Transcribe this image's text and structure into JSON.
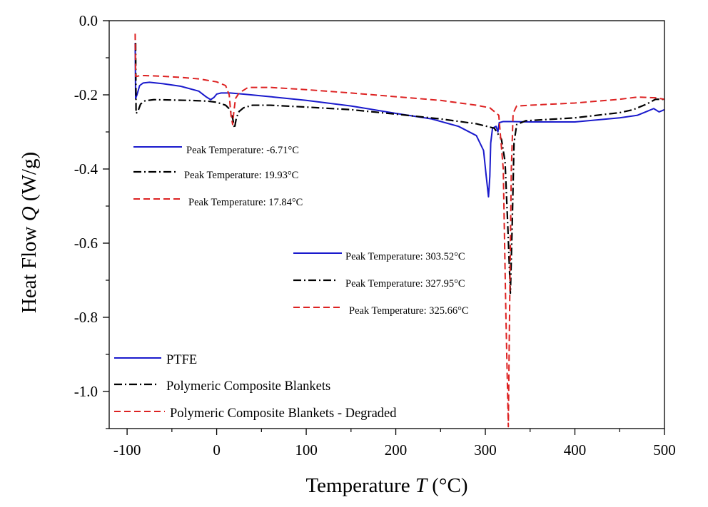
{
  "chart_data": {
    "type": "line",
    "title": "",
    "xlabel_prefix": "Temperature ",
    "xlabel_var": "T",
    "xlabel_unit": " (°C)",
    "ylabel_prefix": "Heat Flow ",
    "ylabel_var": "Q",
    "ylabel_unit": " (W/g)",
    "xlim": [
      -120,
      500
    ],
    "ylim": [
      -1.1,
      0.0
    ],
    "xticks": [
      -100,
      0,
      100,
      200,
      300,
      400,
      500
    ],
    "xtick_labels": [
      "-100",
      "0",
      "100",
      "200",
      "300",
      "400",
      "500"
    ],
    "yticks": [
      0.0,
      -0.2,
      -0.4,
      -0.6,
      -0.8,
      -1.0
    ],
    "ytick_labels": [
      "0.0",
      "-0.2",
      "-0.4",
      "-0.6",
      "-0.8",
      "-1.0"
    ],
    "series": [
      {
        "name": "PTFE",
        "color": "#1a1acc",
        "dash": "solid",
        "points": [
          [
            -91,
            -0.06
          ],
          [
            -90.5,
            -0.21
          ],
          [
            -89,
            -0.2
          ],
          [
            -86,
            -0.175
          ],
          [
            -82,
            -0.168
          ],
          [
            -75,
            -0.166
          ],
          [
            -60,
            -0.17
          ],
          [
            -40,
            -0.177
          ],
          [
            -20,
            -0.19
          ],
          [
            -12,
            -0.205
          ],
          [
            -6.71,
            -0.213
          ],
          [
            -3,
            -0.207
          ],
          [
            0,
            -0.198
          ],
          [
            5,
            -0.195
          ],
          [
            15,
            -0.195
          ],
          [
            30,
            -0.198
          ],
          [
            60,
            -0.205
          ],
          [
            100,
            -0.215
          ],
          [
            150,
            -0.23
          ],
          [
            200,
            -0.25
          ],
          [
            240,
            -0.265
          ],
          [
            270,
            -0.285
          ],
          [
            290,
            -0.31
          ],
          [
            298,
            -0.35
          ],
          [
            301,
            -0.42
          ],
          [
            303.52,
            -0.475
          ],
          [
            305,
            -0.42
          ],
          [
            306,
            -0.33
          ],
          [
            308,
            -0.29
          ],
          [
            312,
            -0.285
          ],
          [
            314,
            -0.3
          ],
          [
            315.5,
            -0.275
          ],
          [
            320,
            -0.272
          ],
          [
            330,
            -0.272
          ],
          [
            350,
            -0.273
          ],
          [
            400,
            -0.273
          ],
          [
            450,
            -0.262
          ],
          [
            470,
            -0.255
          ],
          [
            480,
            -0.245
          ],
          [
            488,
            -0.237
          ],
          [
            494,
            -0.246
          ],
          [
            500,
            -0.24
          ]
        ]
      },
      {
        "name": "Polymeric Composite Blankets",
        "color": "#000000",
        "dash": "dashdot",
        "points": [
          [
            -90.5,
            -0.06
          ],
          [
            -90,
            -0.25
          ],
          [
            -88,
            -0.245
          ],
          [
            -85,
            -0.225
          ],
          [
            -80,
            -0.216
          ],
          [
            -70,
            -0.213
          ],
          [
            -50,
            -0.214
          ],
          [
            -30,
            -0.215
          ],
          [
            -10,
            -0.217
          ],
          [
            0,
            -0.22
          ],
          [
            10,
            -0.228
          ],
          [
            15,
            -0.24
          ],
          [
            18,
            -0.265
          ],
          [
            19.93,
            -0.29
          ],
          [
            22,
            -0.262
          ],
          [
            25,
            -0.245
          ],
          [
            30,
            -0.235
          ],
          [
            40,
            -0.228
          ],
          [
            60,
            -0.228
          ],
          [
            100,
            -0.233
          ],
          [
            150,
            -0.24
          ],
          [
            200,
            -0.252
          ],
          [
            250,
            -0.265
          ],
          [
            290,
            -0.278
          ],
          [
            310,
            -0.29
          ],
          [
            318,
            -0.32
          ],
          [
            322,
            -0.38
          ],
          [
            325,
            -0.55
          ],
          [
            327.95,
            -0.735
          ],
          [
            330,
            -0.55
          ],
          [
            332,
            -0.33
          ],
          [
            335,
            -0.28
          ],
          [
            345,
            -0.27
          ],
          [
            400,
            -0.262
          ],
          [
            450,
            -0.248
          ],
          [
            465,
            -0.24
          ],
          [
            480,
            -0.225
          ],
          [
            490,
            -0.212
          ],
          [
            500,
            -0.212
          ]
        ]
      },
      {
        "name": "Polymeric Composite Blankets - Degraded",
        "color": "#dd2222",
        "dash": "dashed",
        "points": [
          [
            -91,
            -0.035
          ],
          [
            -90.5,
            -0.15
          ],
          [
            -89,
            -0.15
          ],
          [
            -85,
            -0.148
          ],
          [
            -80,
            -0.148
          ],
          [
            -60,
            -0.15
          ],
          [
            -40,
            -0.153
          ],
          [
            -20,
            -0.157
          ],
          [
            0,
            -0.165
          ],
          [
            10,
            -0.175
          ],
          [
            14,
            -0.2
          ],
          [
            16,
            -0.255
          ],
          [
            17.84,
            -0.28
          ],
          [
            19,
            -0.25
          ],
          [
            21,
            -0.21
          ],
          [
            25,
            -0.195
          ],
          [
            35,
            -0.18
          ],
          [
            60,
            -0.18
          ],
          [
            100,
            -0.186
          ],
          [
            150,
            -0.195
          ],
          [
            200,
            -0.205
          ],
          [
            250,
            -0.215
          ],
          [
            290,
            -0.228
          ],
          [
            305,
            -0.235
          ],
          [
            315,
            -0.255
          ],
          [
            320,
            -0.4
          ],
          [
            323,
            -0.8
          ],
          [
            325.66,
            -1.095
          ],
          [
            327,
            -0.8
          ],
          [
            329,
            -0.4
          ],
          [
            331,
            -0.25
          ],
          [
            335,
            -0.23
          ],
          [
            350,
            -0.228
          ],
          [
            400,
            -0.222
          ],
          [
            450,
            -0.212
          ],
          [
            470,
            -0.206
          ],
          [
            490,
            -0.208
          ],
          [
            500,
            -0.212
          ]
        ]
      }
    ],
    "peak_annotations": [
      {
        "series": 0,
        "text": "Peak Temperature: -6.71°C"
      },
      {
        "series": 1,
        "text": "Peak Temperature: 19.93°C"
      },
      {
        "series": 2,
        "text": "Peak Temperature: 17.84°C"
      },
      {
        "series": 0,
        "text": "Peak Temperature: 303.52°C"
      },
      {
        "series": 1,
        "text": "Peak Temperature: 327.95°C"
      },
      {
        "series": 2,
        "text": "Peak Temperature: 325.66°C"
      }
    ],
    "legend": [
      {
        "series": 0,
        "label": "PTFE"
      },
      {
        "series": 1,
        "label": "Polymeric Composite Blankets"
      },
      {
        "series": 2,
        "label": "Polymeric Composite Blankets - Degraded"
      }
    ]
  }
}
